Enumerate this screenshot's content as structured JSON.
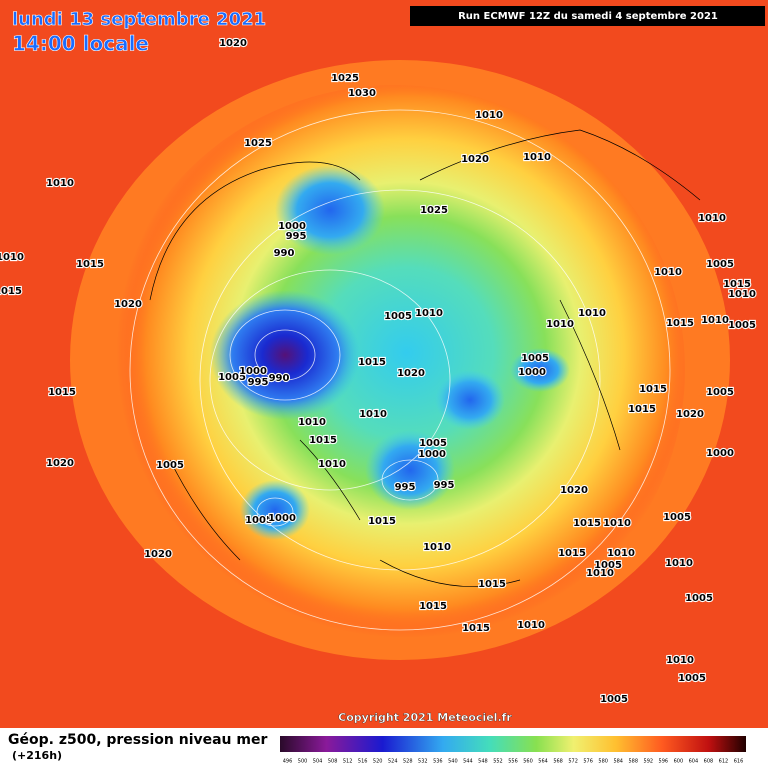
{
  "header": {
    "date": "lundi 13 septembre 2021",
    "time": "14:00 locale",
    "run": "Run ECMWF 12Z du samedi 4 septembre 2021"
  },
  "footer": {
    "copyright": "Copyright 2021 Meteociel.fr",
    "legend_title": "Géop. z500, pression niveau mer",
    "lead": "(+216h)",
    "legend_ticks": [
      496,
      500,
      504,
      508,
      512,
      516,
      520,
      524,
      528,
      532,
      536,
      540,
      544,
      548,
      552,
      556,
      560,
      564,
      568,
      572,
      576,
      580,
      584,
      588,
      592,
      596,
      600,
      604,
      608,
      612,
      616
    ]
  },
  "isobar_labels": [
    "1020",
    "1025",
    "1030",
    "1010",
    "1025",
    "1020",
    "1010",
    "1010",
    "1025",
    "1010",
    "1000",
    "995",
    "990",
    "1010",
    "1015",
    "1005",
    "1010",
    "1015",
    "1010",
    "1015",
    "1020",
    "1005",
    "1010",
    "1010",
    "1010",
    "1015",
    "1010",
    "1005",
    "1015",
    "1005",
    "1000",
    "1020",
    "1005",
    "1000",
    "995",
    "990",
    "1015",
    "1010",
    "1015",
    "1015",
    "1020",
    "1005",
    "1010",
    "1015",
    "1005",
    "1000",
    "1010",
    "1005",
    "1020",
    "995",
    "995",
    "1000",
    "1020",
    "1005",
    "1000",
    "1015",
    "1015",
    "1010",
    "1005",
    "1010",
    "1015",
    "1010",
    "1010",
    "1020",
    "1015",
    "1005",
    "1010",
    "1005",
    "1015",
    "1015",
    "1010",
    "1010",
    "1005",
    "1005"
  ]
}
